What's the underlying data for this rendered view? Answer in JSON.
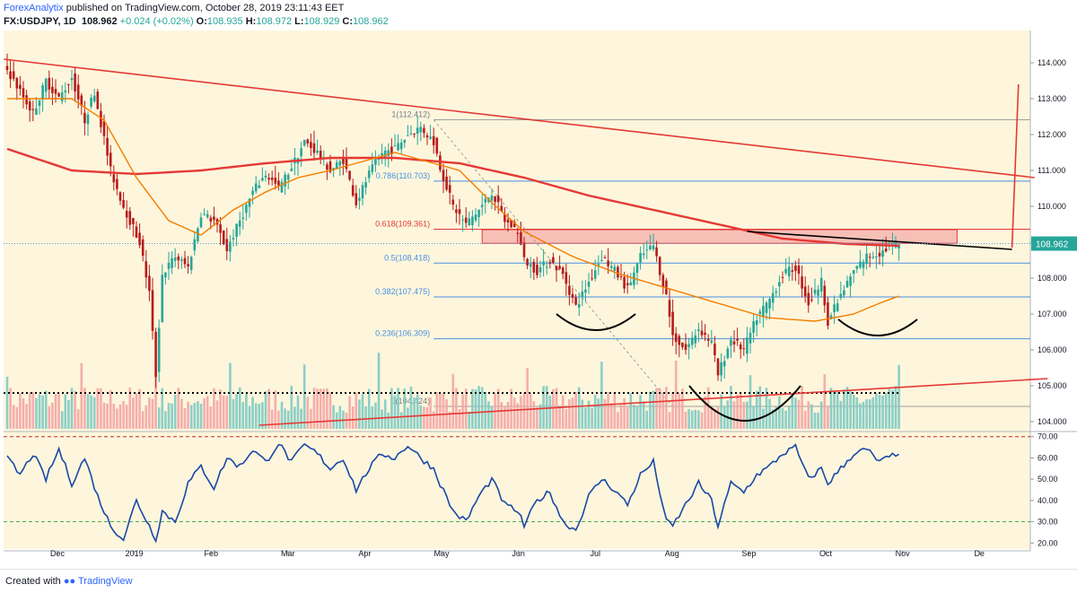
{
  "header": {
    "publisher": "ForexAnalytix",
    "published_text": "published on TradingView.com, October 28, 2019 23:11:43 EET",
    "symbol": "FX:USDJPY, 1D",
    "last": "108.962",
    "change": "+0.024 (+0.02%)",
    "open_label": "O:",
    "open": "108.935",
    "high_label": "H:",
    "high": "108.972",
    "low_label": "L:",
    "low": "108.929",
    "close_label": "C:",
    "close": "108.962"
  },
  "footer": {
    "created_with": "Created with",
    "brand": "TradingView"
  },
  "colors": {
    "background": "#fdf6dc",
    "up": "#26a69a",
    "down": "#b71c1c",
    "ma_long": "#e53935",
    "ma_short": "#f57c00",
    "trend": "#e53935",
    "fib": "#4a90e2",
    "rsi": "#1a47a8",
    "zone": "#f4a3a3"
  },
  "chart_data": [
    {
      "type": "candlestick",
      "symbol": "FX:USDJPY",
      "timeframe": "1D",
      "x_tick_labels": [
        "Dec",
        "2019",
        "Feb",
        "Mar",
        "Apr",
        "May",
        "Jun",
        "Jul",
        "Aug",
        "Sep",
        "Oct",
        "Nov",
        "De"
      ],
      "y_tick_labels": [
        "104.000",
        "105.000",
        "106.000",
        "107.000",
        "108.000",
        "109.000",
        "110.000",
        "111.000",
        "112.000",
        "113.000",
        "114.000"
      ],
      "ylim": [
        103.8,
        114.6
      ],
      "last_price_label": "108.962",
      "fib_levels": [
        {
          "label": "1(112.412)",
          "value": 112.412
        },
        {
          "label": "0.786(110.703)",
          "value": 110.703
        },
        {
          "label": "0.618(109.361)",
          "value": 109.361
        },
        {
          "label": "0.5(108.418)",
          "value": 108.418
        },
        {
          "label": "0.382(107.475)",
          "value": 107.475
        },
        {
          "label": "0.236(106.309)",
          "value": 106.309
        },
        {
          "label": "0(104.424)",
          "value": 104.424
        }
      ],
      "resistance_zone": [
        108.97,
        109.35
      ],
      "close_path": [
        [
          0,
          113.8
        ],
        [
          4,
          113.2
        ],
        [
          8,
          112.6
        ],
        [
          12,
          113.5
        ],
        [
          16,
          113.0
        ],
        [
          20,
          113.6
        ],
        [
          24,
          112.4
        ],
        [
          27,
          113.2
        ],
        [
          32,
          111.0
        ],
        [
          36,
          110.0
        ],
        [
          41,
          109.0
        ],
        [
          44,
          107.6
        ],
        [
          46,
          105.3
        ],
        [
          48,
          108.1
        ],
        [
          52,
          108.6
        ],
        [
          56,
          108.3
        ],
        [
          60,
          109.8
        ],
        [
          64,
          109.6
        ],
        [
          68,
          108.8
        ],
        [
          72,
          109.6
        ],
        [
          76,
          110.4
        ],
        [
          80,
          110.9
        ],
        [
          84,
          110.5
        ],
        [
          88,
          111.1
        ],
        [
          92,
          111.8
        ],
        [
          96,
          111.5
        ],
        [
          100,
          111.0
        ],
        [
          104,
          111.3
        ],
        [
          108,
          110.1
        ],
        [
          112,
          110.9
        ],
        [
          116,
          111.5
        ],
        [
          120,
          111.6
        ],
        [
          124,
          112.0
        ],
        [
          128,
          112.2
        ],
        [
          132,
          111.8
        ],
        [
          134,
          111.1
        ],
        [
          138,
          110.0
        ],
        [
          142,
          109.5
        ],
        [
          146,
          109.9
        ],
        [
          150,
          110.4
        ],
        [
          154,
          109.6
        ],
        [
          158,
          109.3
        ],
        [
          160,
          108.5
        ],
        [
          164,
          108.2
        ],
        [
          168,
          108.5
        ],
        [
          172,
          108.1
        ],
        [
          176,
          107.2
        ],
        [
          180,
          107.9
        ],
        [
          184,
          108.6
        ],
        [
          188,
          108.2
        ],
        [
          192,
          107.7
        ],
        [
          196,
          108.6
        ],
        [
          200,
          108.9
        ],
        [
          204,
          107.5
        ],
        [
          206,
          106.4
        ],
        [
          210,
          106.0
        ],
        [
          214,
          106.6
        ],
        [
          218,
          106.2
        ],
        [
          220,
          105.3
        ],
        [
          224,
          106.3
        ],
        [
          228,
          106.0
        ],
        [
          232,
          106.9
        ],
        [
          236,
          107.4
        ],
        [
          240,
          108.1
        ],
        [
          244,
          108.3
        ],
        [
          248,
          107.3
        ],
        [
          252,
          107.9
        ],
        [
          254,
          106.8
        ],
        [
          258,
          107.5
        ],
        [
          262,
          108.2
        ],
        [
          266,
          108.6
        ],
        [
          270,
          108.7
        ],
        [
          274,
          108.9
        ],
        [
          276,
          108.96
        ]
      ],
      "moving_averages": [
        {
          "key": "ma_long",
          "values": [
            [
              0,
              111.6
            ],
            [
              20,
              111.0
            ],
            [
              40,
              110.9
            ],
            [
              60,
              111.0
            ],
            [
              80,
              111.2
            ],
            [
              100,
              111.35
            ],
            [
              120,
              111.35
            ],
            [
              140,
              111.2
            ],
            [
              160,
              110.8
            ],
            [
              180,
              110.3
            ],
            [
              200,
              109.9
            ],
            [
              220,
              109.5
            ],
            [
              240,
              109.1
            ],
            [
              260,
              108.95
            ],
            [
              276,
              108.9
            ]
          ]
        },
        {
          "key": "ma_short",
          "values": [
            [
              0,
              113.0
            ],
            [
              20,
              113.0
            ],
            [
              30,
              112.4
            ],
            [
              40,
              110.8
            ],
            [
              50,
              109.6
            ],
            [
              60,
              109.2
            ],
            [
              70,
              109.9
            ],
            [
              80,
              110.4
            ],
            [
              90,
              110.8
            ],
            [
              100,
              111.0
            ],
            [
              120,
              111.5
            ],
            [
              140,
              111.0
            ],
            [
              150,
              110.1
            ],
            [
              160,
              109.3
            ],
            [
              175,
              108.6
            ],
            [
              190,
              108.1
            ],
            [
              205,
              107.7
            ],
            [
              220,
              107.3
            ],
            [
              235,
              106.9
            ],
            [
              250,
              106.8
            ],
            [
              262,
              107.0
            ],
            [
              270,
              107.3
            ],
            [
              276,
              107.5
            ]
          ]
        }
      ],
      "trend_lines": [
        {
          "key": "resistance",
          "from": [
            -1,
            114.1
          ],
          "to": [
            318,
            110.8
          ]
        },
        {
          "key": "support",
          "from": [
            78,
            103.9
          ],
          "to": [
            322,
            105.2
          ]
        },
        {
          "key": "neckline",
          "from": [
            229,
            109.3
          ],
          "to": [
            311,
            108.8
          ]
        },
        {
          "key": "target",
          "from": [
            311,
            108.85
          ],
          "to": [
            313,
            113.4
          ]
        }
      ]
    },
    {
      "type": "line",
      "series_key": "rsi",
      "y_tick_labels": [
        "20.00",
        "30.00",
        "40.00",
        "50.00",
        "60.00",
        "70.00"
      ],
      "ylim": [
        18,
        72
      ],
      "levels": [
        30,
        70
      ],
      "values": [
        [
          0,
          60
        ],
        [
          4,
          52
        ],
        [
          8,
          62
        ],
        [
          12,
          50
        ],
        [
          16,
          64
        ],
        [
          20,
          48
        ],
        [
          24,
          60
        ],
        [
          28,
          42
        ],
        [
          32,
          28
        ],
        [
          36,
          22
        ],
        [
          40,
          40
        ],
        [
          44,
          28
        ],
        [
          46,
          22
        ],
        [
          48,
          35
        ],
        [
          52,
          30
        ],
        [
          56,
          48
        ],
        [
          60,
          56
        ],
        [
          64,
          46
        ],
        [
          68,
          60
        ],
        [
          72,
          56
        ],
        [
          76,
          64
        ],
        [
          80,
          58
        ],
        [
          84,
          67
        ],
        [
          88,
          58
        ],
        [
          92,
          66
        ],
        [
          96,
          62
        ],
        [
          100,
          55
        ],
        [
          104,
          60
        ],
        [
          108,
          45
        ],
        [
          112,
          55
        ],
        [
          116,
          62
        ],
        [
          120,
          60
        ],
        [
          124,
          66
        ],
        [
          128,
          60
        ],
        [
          132,
          55
        ],
        [
          134,
          48
        ],
        [
          138,
          35
        ],
        [
          142,
          30
        ],
        [
          146,
          42
        ],
        [
          150,
          50
        ],
        [
          154,
          38
        ],
        [
          158,
          35
        ],
        [
          160,
          28
        ],
        [
          164,
          40
        ],
        [
          168,
          44
        ],
        [
          172,
          30
        ],
        [
          176,
          26
        ],
        [
          180,
          42
        ],
        [
          184,
          50
        ],
        [
          188,
          45
        ],
        [
          192,
          38
        ],
        [
          196,
          52
        ],
        [
          200,
          58
        ],
        [
          204,
          30
        ],
        [
          206,
          28
        ],
        [
          210,
          38
        ],
        [
          214,
          48
        ],
        [
          218,
          40
        ],
        [
          220,
          28
        ],
        [
          224,
          48
        ],
        [
          228,
          44
        ],
        [
          232,
          52
        ],
        [
          236,
          56
        ],
        [
          240,
          62
        ],
        [
          244,
          65
        ],
        [
          248,
          50
        ],
        [
          252,
          55
        ],
        [
          254,
          48
        ],
        [
          258,
          55
        ],
        [
          262,
          62
        ],
        [
          266,
          64
        ],
        [
          270,
          58
        ],
        [
          274,
          61
        ],
        [
          276,
          63
        ]
      ]
    }
  ]
}
